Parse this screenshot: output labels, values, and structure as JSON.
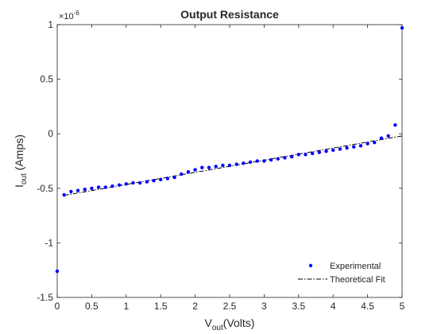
{
  "chart_data": {
    "type": "scatter",
    "title": "Output Resistance",
    "xlabel": {
      "main": "V",
      "sub": "out",
      "rest": "(Volts)"
    },
    "ylabel": {
      "main": "I",
      "sub": "out",
      "rest": " (Amps)"
    },
    "y_multiplier": {
      "base": "×10",
      "exp": "-6"
    },
    "xlim": [
      0,
      5
    ],
    "ylim": [
      -1.5,
      1
    ],
    "x_ticks": [
      0,
      0.5,
      1,
      1.5,
      2,
      2.5,
      3,
      3.5,
      4,
      4.5,
      5
    ],
    "x_tick_labels": [
      "0",
      "0.5",
      "1",
      "1.5",
      "2",
      "2.5",
      "3",
      "3.5",
      "4",
      "4.5",
      "5"
    ],
    "y_ticks": [
      -1.5,
      -1,
      -0.5,
      0,
      0.5,
      1
    ],
    "y_tick_labels": [
      "-1.5",
      "-1",
      "-0.5",
      "0",
      "0.5",
      "1"
    ],
    "grid": false,
    "legend_position": "bottom-right",
    "series": [
      {
        "name": "Experimental",
        "style": "markers",
        "color": "#0000ff",
        "x": [
          0.0,
          0.1,
          0.2,
          0.3,
          0.4,
          0.5,
          0.6,
          0.7,
          0.8,
          0.9,
          1.0,
          1.1,
          1.2,
          1.3,
          1.4,
          1.5,
          1.6,
          1.7,
          1.8,
          1.9,
          2.0,
          2.1,
          2.2,
          2.3,
          2.4,
          2.5,
          2.6,
          2.7,
          2.8,
          2.9,
          3.0,
          3.1,
          3.2,
          3.3,
          3.4,
          3.5,
          3.6,
          3.7,
          3.8,
          3.9,
          4.0,
          4.1,
          4.2,
          4.3,
          4.4,
          4.5,
          4.6,
          4.7,
          4.8,
          4.9,
          5.0
        ],
        "y": [
          -1.26,
          -0.56,
          -0.53,
          -0.52,
          -0.51,
          -0.5,
          -0.49,
          -0.49,
          -0.48,
          -0.47,
          -0.46,
          -0.45,
          -0.45,
          -0.44,
          -0.43,
          -0.42,
          -0.41,
          -0.4,
          -0.37,
          -0.35,
          -0.33,
          -0.31,
          -0.31,
          -0.3,
          -0.29,
          -0.29,
          -0.28,
          -0.27,
          -0.26,
          -0.25,
          -0.25,
          -0.24,
          -0.23,
          -0.22,
          -0.21,
          -0.19,
          -0.19,
          -0.18,
          -0.17,
          -0.16,
          -0.15,
          -0.14,
          -0.13,
          -0.12,
          -0.11,
          -0.09,
          -0.08,
          -0.04,
          -0.02,
          0.08,
          0.97
        ]
      },
      {
        "name": "Theoretical Fit",
        "style": "dash-dot line",
        "color": "#000000",
        "x": [
          0.1,
          5.0
        ],
        "y": [
          -0.565,
          -0.02
        ]
      }
    ]
  }
}
